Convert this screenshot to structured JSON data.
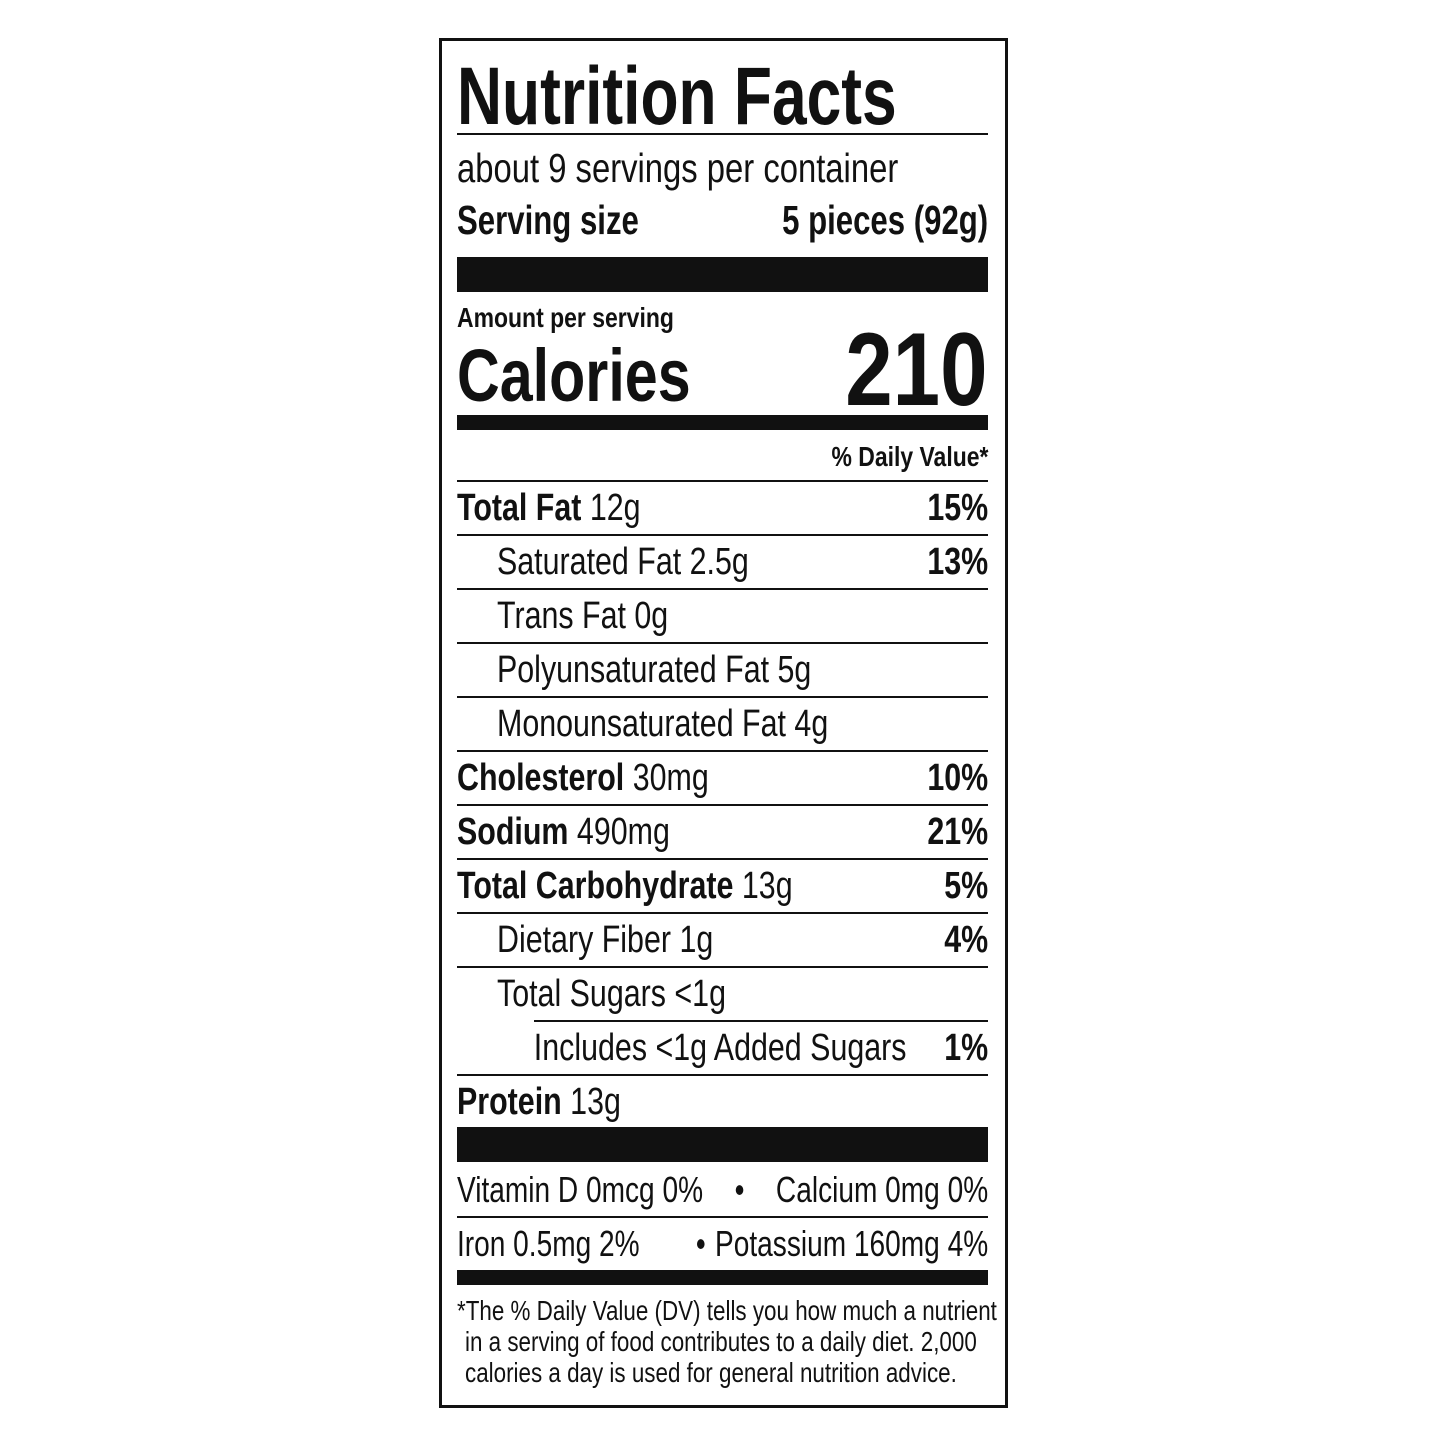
{
  "title": "Nutrition Facts",
  "servings_per_container": "about 9 servings per container",
  "serving_size_label": "Serving size",
  "serving_size_value": "5 pieces (92g)",
  "amount_per_serving": "Amount per serving",
  "calories_label": "Calories",
  "calories_value": "210",
  "daily_value_header": "% Daily Value*",
  "nutrients": [
    {
      "name": "Total Fat",
      "amount": "12g",
      "dv": "15%"
    },
    {
      "name": "Saturated Fat 2.5g",
      "amount": "",
      "dv": "13%"
    },
    {
      "name": "Trans Fat 0g",
      "amount": "",
      "dv": ""
    },
    {
      "name": "Polyunsaturated Fat 5g",
      "amount": "",
      "dv": ""
    },
    {
      "name": "Monounsaturated Fat 4g",
      "amount": "",
      "dv": ""
    },
    {
      "name": "Cholesterol",
      "amount": "30mg",
      "dv": "10%"
    },
    {
      "name": "Sodium",
      "amount": "490mg",
      "dv": "21%"
    },
    {
      "name": "Total Carbohydrate",
      "amount": "13g",
      "dv": "5%"
    },
    {
      "name": "Dietary Fiber 1g",
      "amount": "",
      "dv": "4%"
    },
    {
      "name": "Total Sugars <1g",
      "amount": "",
      "dv": ""
    },
    {
      "name": "Includes <1g Added Sugars",
      "amount": "",
      "dv": "1%"
    },
    {
      "name": "Protein",
      "amount": "13g",
      "dv": ""
    }
  ],
  "vitamins": {
    "vitamin_d": "Vitamin D 0mcg 0%",
    "calcium": "Calcium 0mg 0%",
    "iron": "Iron 0.5mg 2%",
    "potassium": "Potassium 160mg 4%",
    "bullet": "•"
  },
  "footnote": [
    "*The % Daily Value (DV) tells you how much a nutrient",
    "in a serving of food contributes to a daily diet. 2,000",
    "calories a day is used for general nutrition advice."
  ]
}
